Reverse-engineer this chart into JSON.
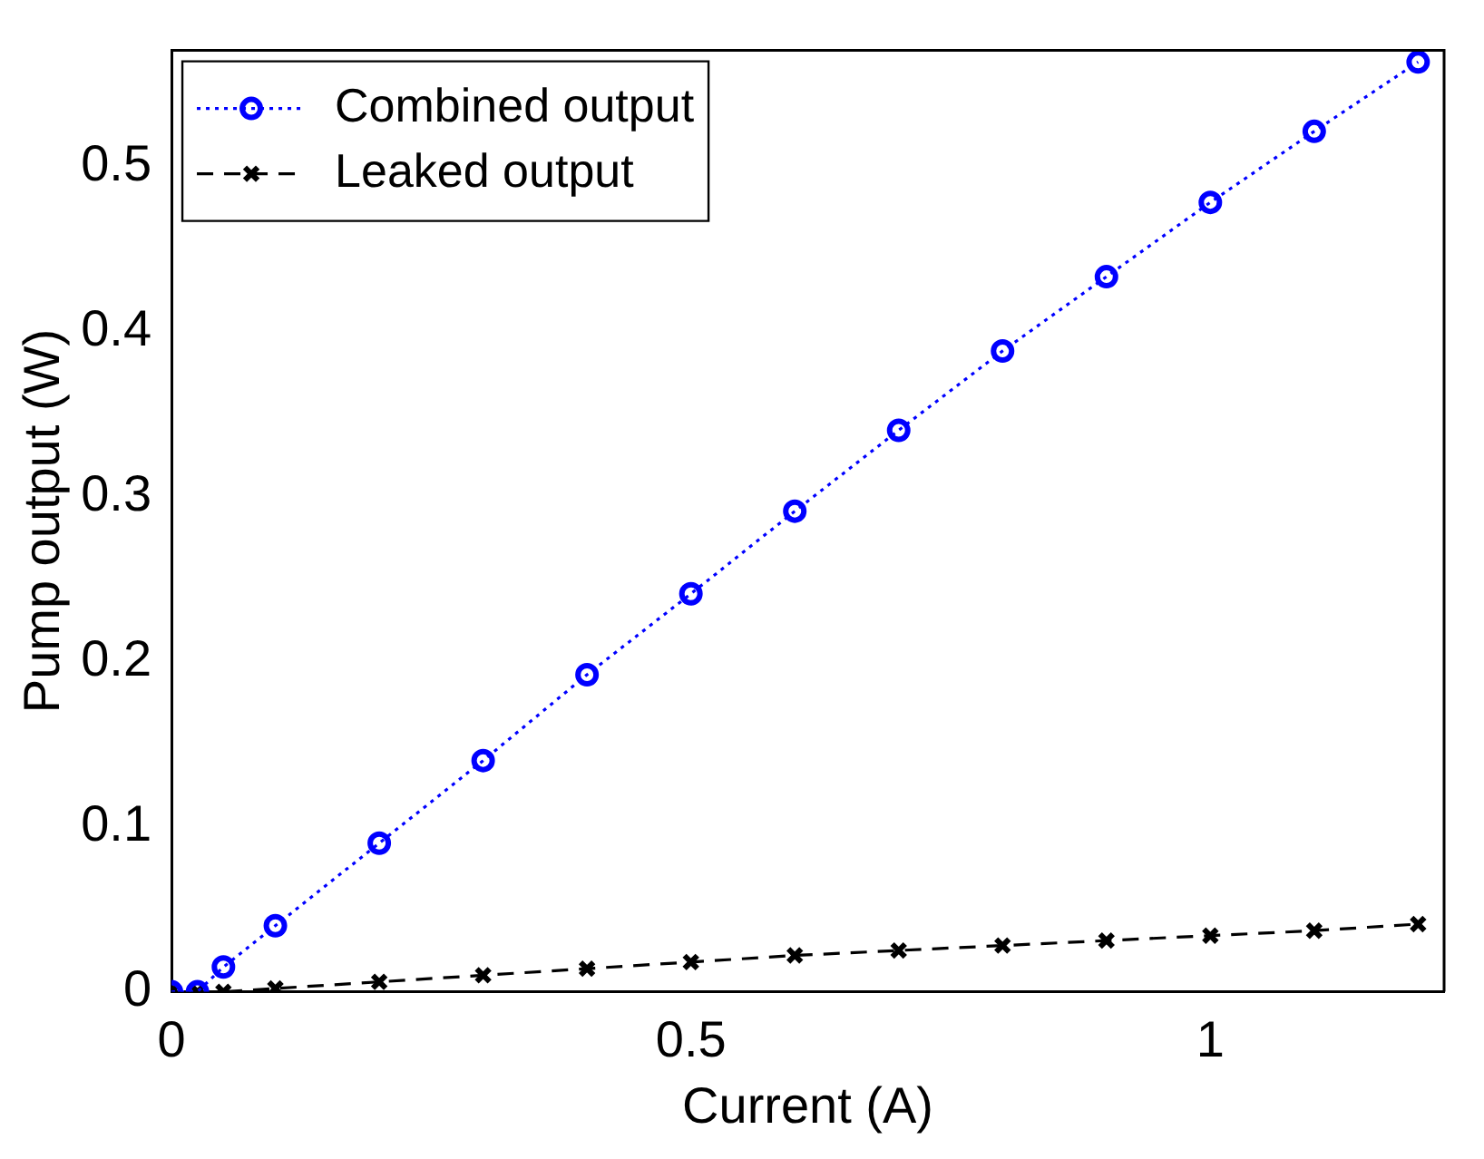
{
  "chart_data": {
    "type": "line",
    "xlabel": "Current (A)",
    "ylabel": "Pump output (W)",
    "xlim": [
      0,
      1.225
    ],
    "xticks": [
      0,
      0.5,
      1
    ],
    "ylim": [
      0,
      0.57
    ],
    "yticks": [
      0,
      0.1,
      0.2,
      0.3,
      0.4,
      0.5
    ],
    "grid": false,
    "legend": "top left",
    "x": [
      0,
      0.025,
      0.05,
      0.1,
      0.2,
      0.3,
      0.4,
      0.5,
      0.6,
      0.7,
      0.8,
      0.9,
      1.0,
      1.1,
      1.2
    ],
    "series": [
      {
        "name": "Combined output",
        "color": "#0000ff",
        "marker": "circle",
        "line_style": "dotted",
        "values": [
          0,
          0,
          0.015,
          0.04,
          0.09,
          0.14,
          0.192,
          0.241,
          0.291,
          0.34,
          0.388,
          0.433,
          0.478,
          0.521,
          0.563
        ]
      },
      {
        "name": "Leaked output",
        "color": "#000000",
        "marker": "cross",
        "line_style": "dashed",
        "values": [
          0,
          0,
          0,
          0.002,
          0.006,
          0.01,
          0.014,
          0.018,
          0.022,
          0.025,
          0.028,
          0.031,
          0.034,
          0.037,
          0.041
        ]
      }
    ]
  }
}
